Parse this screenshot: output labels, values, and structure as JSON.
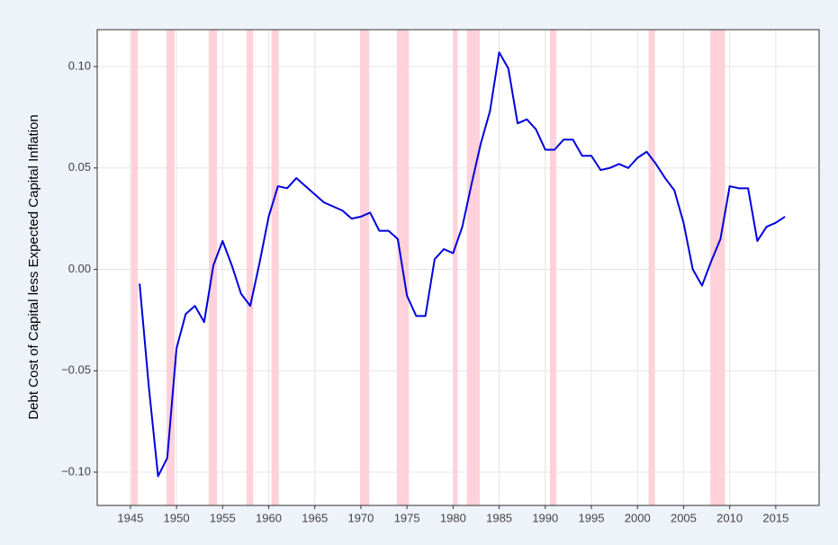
{
  "chart_data": {
    "type": "line",
    "y_label": "Debt Cost of Capital less Expected Capital Inflation",
    "x": [
      1946,
      1947,
      1948,
      1949,
      1950,
      1951,
      1952,
      1953,
      1954,
      1955,
      1956,
      1957,
      1958,
      1959,
      1960,
      1961,
      1962,
      1963,
      1964,
      1965,
      1966,
      1967,
      1968,
      1969,
      1970,
      1971,
      1972,
      1973,
      1974,
      1975,
      1976,
      1977,
      1978,
      1979,
      1980,
      1981,
      1982,
      1983,
      1984,
      1985,
      1986,
      1987,
      1988,
      1989,
      1990,
      1991,
      1992,
      1993,
      1994,
      1995,
      1996,
      1997,
      1998,
      1999,
      2000,
      2001,
      2002,
      2003,
      2004,
      2005,
      2006,
      2007,
      2008,
      2009,
      2010,
      2011,
      2012,
      2013,
      2014,
      2015,
      2016
    ],
    "series": [
      {
        "color": "#0000dd",
        "values": [
          -0.007,
          -0.058,
          -0.102,
          -0.093,
          -0.039,
          -0.022,
          -0.018,
          -0.026,
          0.002,
          0.014,
          0.002,
          -0.012,
          -0.018,
          0.003,
          0.026,
          0.041,
          0.04,
          0.045,
          0.041,
          0.037,
          0.033,
          0.031,
          0.029,
          0.025,
          0.026,
          0.028,
          0.019,
          0.019,
          0.015,
          -0.013,
          -0.023,
          -0.023,
          0.005,
          0.01,
          0.008,
          0.021,
          0.042,
          0.062,
          0.078,
          0.107,
          0.099,
          0.072,
          0.074,
          0.069,
          0.059,
          0.059,
          0.064,
          0.064,
          0.056,
          0.056,
          0.049,
          0.05,
          0.052,
          0.05,
          0.055,
          0.058,
          0.052,
          0.045,
          0.039,
          0.023,
          0.0,
          -0.008,
          0.004,
          0.015,
          0.041,
          0.04,
          0.04,
          0.014,
          0.021,
          0.023,
          0.026
        ]
      }
    ],
    "recessions": [
      [
        1945.1,
        1945.8
      ],
      [
        1948.9,
        1949.8
      ],
      [
        1953.5,
        1954.4
      ],
      [
        1957.6,
        1958.3
      ],
      [
        1960.3,
        1961.1
      ],
      [
        1969.9,
        1970.9
      ],
      [
        1973.9,
        1975.2
      ],
      [
        1980.0,
        1980.5
      ],
      [
        1981.5,
        1982.9
      ],
      [
        1990.5,
        1991.2
      ],
      [
        2001.2,
        2001.9
      ],
      [
        2007.9,
        2009.5
      ]
    ],
    "recession_color": "#ffd1da",
    "xlim": [
      1941.4,
      2019.7
    ],
    "xticks": [
      1945,
      1950,
      1955,
      1960,
      1965,
      1970,
      1975,
      1980,
      1985,
      1990,
      1995,
      2000,
      2005,
      2010,
      2015
    ],
    "ylim": [
      -0.1164,
      0.1182
    ],
    "yticks": [
      {
        "value": -0.1,
        "label": "−0.10"
      },
      {
        "value": -0.05,
        "label": "−0.05"
      },
      {
        "value": 0,
        "label": "0.00"
      },
      {
        "value": 0.05,
        "label": "0.05"
      },
      {
        "value": 0.1,
        "label": "0.10"
      }
    ],
    "grid": true
  }
}
